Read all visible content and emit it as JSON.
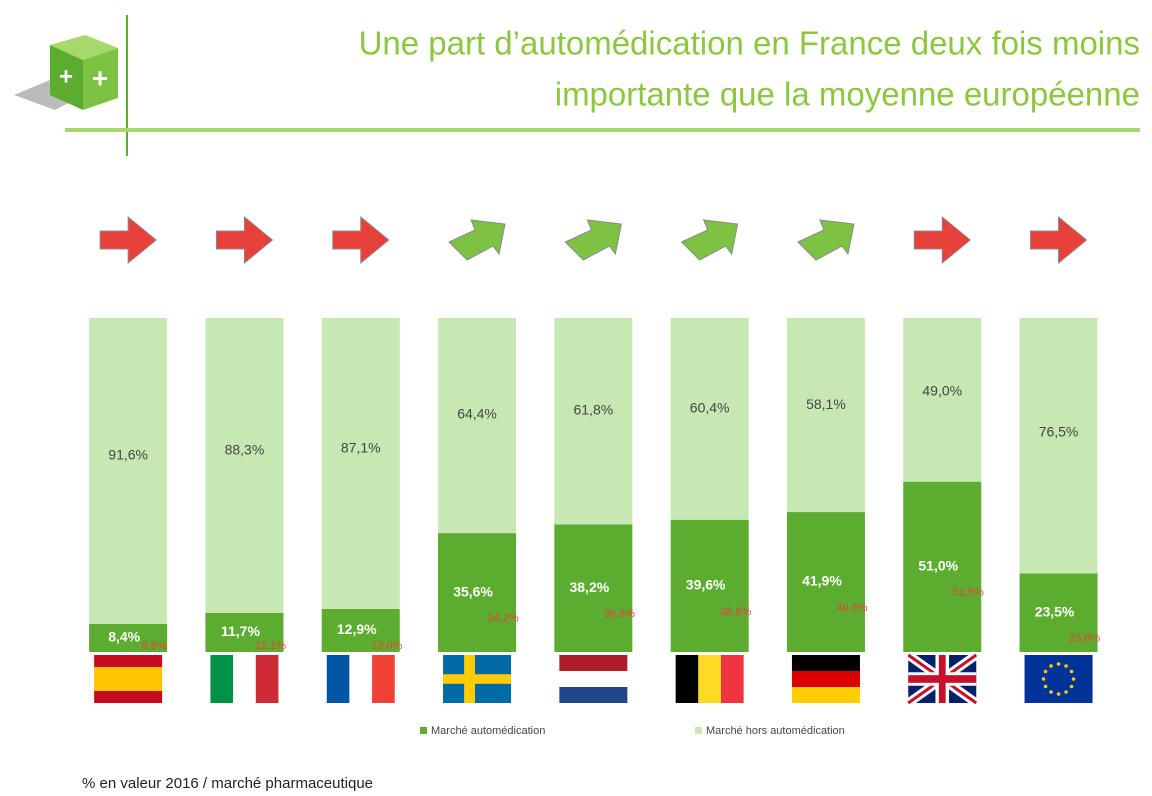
{
  "title_lines": [
    "Une part d’automédication en France deux fois moins",
    "importante que la moyenne européenne"
  ],
  "chart_data": {
    "type": "bar",
    "stacked": true,
    "categories": [
      null,
      null,
      null,
      null,
      null,
      null,
      null,
      null,
      null
    ],
    "ylim": [
      0,
      100
    ],
    "series": [
      {
        "name": "Marché automédication",
        "color": "#5cad2f",
        "values": [
          8.4,
          11.7,
          12.9,
          35.6,
          38.2,
          39.6,
          41.9,
          51.0,
          23.5
        ],
        "value_labels": [
          "8,4%",
          "11,7%",
          "12,9%",
          "35,6%",
          "38,2%",
          "39,6%",
          "41,9%",
          "51,0%",
          "23,5%"
        ]
      },
      {
        "name": "Marché hors automédication",
        "color": "#c8e8b3",
        "values": [
          91.6,
          88.3,
          87.1,
          64.4,
          61.8,
          60.4,
          58.1,
          49.0,
          76.5
        ],
        "value_labels": [
          "91,6%",
          "88,3%",
          "87,1%",
          "64,4%",
          "61,8%",
          "60,4%",
          "58,1%",
          "49,0%",
          "76,5%"
        ]
      }
    ],
    "red_labels": {
      "color": "#e8413c",
      "values": [
        8.6,
        12.1,
        13.0,
        34.2,
        36.5,
        38.8,
        40.6,
        51.5,
        23.6
      ],
      "value_labels": [
        "8,6%",
        "12,1%",
        "13,0%",
        "34,2%",
        "36,5%",
        "38,8%",
        "40,6%",
        "51,5%",
        "23,6%"
      ]
    },
    "arrow_colors": [
      "#e8413c",
      "#e8413c",
      "#e8413c",
      "#7dc242",
      "#7dc242",
      "#7dc242",
      "#7dc242",
      "#e8413c",
      "#e8413c"
    ],
    "note": "% en valeur 2016 / marché pharmaceutique"
  }
}
